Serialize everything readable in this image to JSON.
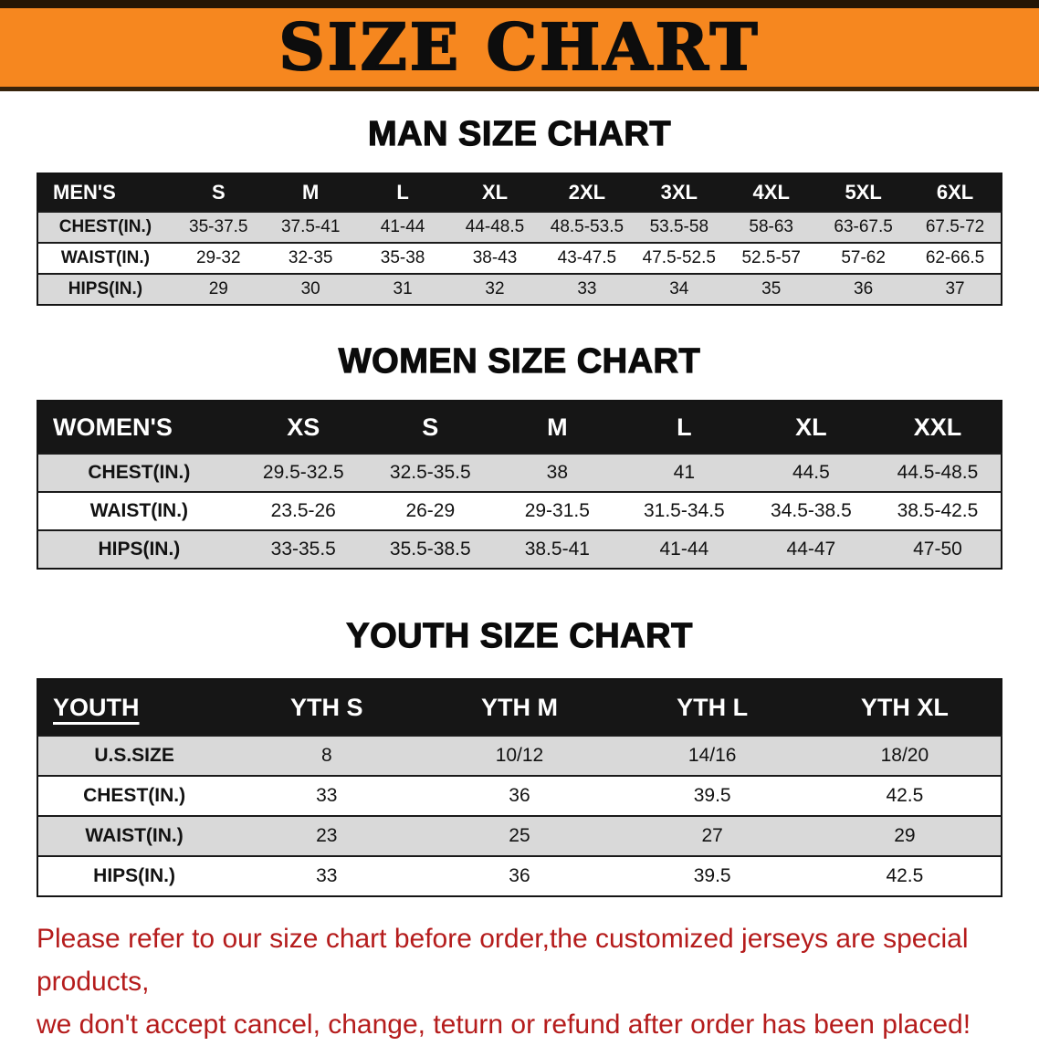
{
  "banner": {
    "title": "SIZE CHART"
  },
  "colors": {
    "banner_bg": "#f6871f",
    "table_header_bg": "#161616",
    "row_stripe": "#d9d9d9",
    "notice_text": "#b51c1c"
  },
  "tables": [
    {
      "id": "men",
      "heading": "MAN SIZE CHART",
      "label_col_width": "14%",
      "header": [
        "MEN'S",
        "S",
        "M",
        "L",
        "XL",
        "2XL",
        "3XL",
        "4XL",
        "5XL",
        "6XL"
      ],
      "rows": [
        [
          "CHEST(IN.)",
          "35-37.5",
          "37.5-41",
          "41-44",
          "44-48.5",
          "48.5-53.5",
          "53.5-58",
          "58-63",
          "63-67.5",
          "67.5-72"
        ],
        [
          "WAIST(IN.)",
          "29-32",
          "32-35",
          "35-38",
          "38-43",
          "43-47.5",
          "47.5-52.5",
          "52.5-57",
          "57-62",
          "62-66.5"
        ],
        [
          "HIPS(IN.)",
          "29",
          "30",
          "31",
          "32",
          "33",
          "34",
          "35",
          "36",
          "37"
        ]
      ]
    },
    {
      "id": "women",
      "heading": "WOMEN SIZE CHART",
      "label_col_width": "21%",
      "header": [
        "WOMEN'S",
        "XS",
        "S",
        "M",
        "L",
        "XL",
        "XXL"
      ],
      "rows": [
        [
          "CHEST(IN.)",
          "29.5-32.5",
          "32.5-35.5",
          "38",
          "41",
          "44.5",
          "44.5-48.5"
        ],
        [
          "WAIST(IN.)",
          "23.5-26",
          "26-29",
          "29-31.5",
          "31.5-34.5",
          "34.5-38.5",
          "38.5-42.5"
        ],
        [
          "HIPS(IN.)",
          "33-35.5",
          "35.5-38.5",
          "38.5-41",
          "41-44",
          "44-47",
          "47-50"
        ]
      ]
    },
    {
      "id": "youth",
      "heading": "YOUTH SIZE CHART",
      "label_col_width": "20%",
      "header": [
        "YOUTH",
        "YTH S",
        "YTH M",
        "YTH L",
        "YTH XL"
      ],
      "rows": [
        [
          "U.S.SIZE",
          "8",
          "10/12",
          "14/16",
          "18/20"
        ],
        [
          "CHEST(IN.)",
          "33",
          "36",
          "39.5",
          "42.5"
        ],
        [
          "WAIST(IN.)",
          "23",
          "25",
          "27",
          "29"
        ],
        [
          "HIPS(IN.)",
          "33",
          "36",
          "39.5",
          "42.5"
        ]
      ]
    }
  ],
  "footer": {
    "lines": [
      "Please refer to our size chart before order,the customized jerseys are special products,",
      "we don't accept cancel, change, teturn or refund after order has been placed!"
    ]
  }
}
